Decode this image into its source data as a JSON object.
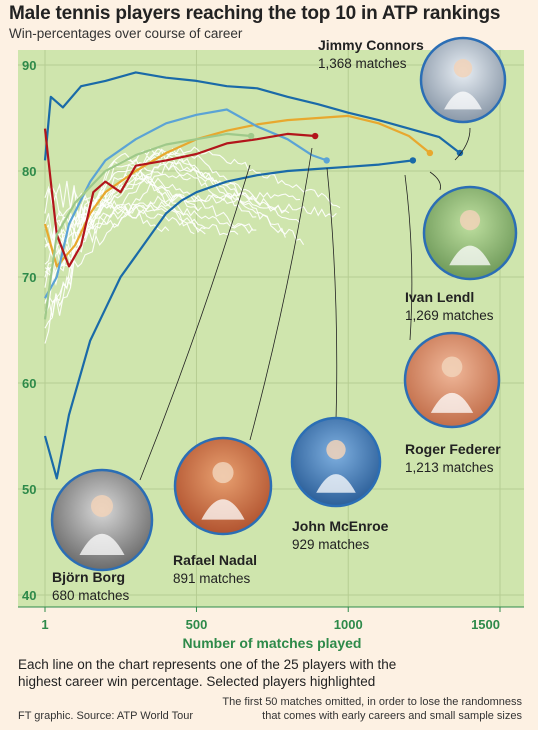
{
  "header": {
    "title": "Male tennis players reaching the top 10 in ATP rankings",
    "subtitle": "Win-percentages over course of career"
  },
  "footer": {
    "caption": "Each line on the chart represents one of the 25 players with the highest career win percentage. Selected players highlighted",
    "source": "FT graphic.   Source: ATP World Tour",
    "note": "The first 50 matches omitted, in order to lose the randomness that comes with early careers and small sample sizes"
  },
  "colors": {
    "plot_bg": "#cfe5ad",
    "grid": "#b6cd92",
    "axis_green": "#2e8a4a",
    "background_lines": "#ffffff",
    "photo_border": "#2b6eb5"
  },
  "chart_data": {
    "type": "line",
    "xlabel": "Number of matches played",
    "ylabel": "",
    "xlim": [
      1,
      1500
    ],
    "ylim": [
      40,
      90
    ],
    "xticks": [
      {
        "value": 1,
        "label": "1"
      },
      {
        "value": 500,
        "label": "500"
      },
      {
        "value": 1000,
        "label": "1000"
      },
      {
        "value": 1500,
        "label": "1500"
      }
    ],
    "yticks": [
      {
        "value": 40,
        "label": "40"
      },
      {
        "value": 50,
        "label": "50"
      },
      {
        "value": 60,
        "label": "60"
      },
      {
        "value": 70,
        "label": "70"
      },
      {
        "value": 80,
        "label": "80"
      },
      {
        "value": 90,
        "label": "90"
      }
    ],
    "grid": true,
    "series": [
      {
        "name": "Jimmy Connors",
        "subtitle": "1,368 matches",
        "color": "#1a6aa8",
        "points": [
          [
            1,
            81
          ],
          [
            20,
            87
          ],
          [
            60,
            86
          ],
          [
            120,
            88
          ],
          [
            200,
            88.5
          ],
          [
            300,
            89.3
          ],
          [
            400,
            88.8
          ],
          [
            500,
            88.5
          ],
          [
            600,
            88
          ],
          [
            700,
            87.8
          ],
          [
            800,
            87
          ],
          [
            900,
            86.3
          ],
          [
            1000,
            85.5
          ],
          [
            1100,
            84.8
          ],
          [
            1200,
            84
          ],
          [
            1300,
            83.2
          ],
          [
            1368,
            81.7
          ]
        ]
      },
      {
        "name": "Ivan Lendl",
        "subtitle": "1,269 matches",
        "color": "#e8a82e",
        "points": [
          [
            1,
            75
          ],
          [
            40,
            71
          ],
          [
            100,
            73
          ],
          [
            150,
            76
          ],
          [
            200,
            78
          ],
          [
            300,
            80
          ],
          [
            400,
            81.7
          ],
          [
            500,
            83
          ],
          [
            600,
            83.8
          ],
          [
            700,
            84.4
          ],
          [
            800,
            84.8
          ],
          [
            900,
            85
          ],
          [
            1000,
            85.2
          ],
          [
            1100,
            84.5
          ],
          [
            1200,
            83.3
          ],
          [
            1269,
            81.7
          ]
        ]
      },
      {
        "name": "Roger Federer",
        "subtitle": "1,213 matches",
        "color": "#1a6aa8",
        "points": [
          [
            1,
            55
          ],
          [
            40,
            51
          ],
          [
            80,
            57
          ],
          [
            120,
            61
          ],
          [
            150,
            64
          ],
          [
            200,
            67
          ],
          [
            250,
            70
          ],
          [
            300,
            72
          ],
          [
            350,
            74
          ],
          [
            400,
            76
          ],
          [
            450,
            77.2
          ],
          [
            500,
            78
          ],
          [
            600,
            79
          ],
          [
            700,
            79.6
          ],
          [
            800,
            80
          ],
          [
            900,
            80.2
          ],
          [
            1000,
            80.4
          ],
          [
            1100,
            80.6
          ],
          [
            1213,
            81
          ]
        ]
      },
      {
        "name": "John McEnroe",
        "subtitle": "929 matches",
        "color": "#5ba3d5",
        "points": [
          [
            1,
            68
          ],
          [
            40,
            70
          ],
          [
            80,
            75
          ],
          [
            150,
            79
          ],
          [
            200,
            81
          ],
          [
            300,
            83
          ],
          [
            400,
            84.5
          ],
          [
            500,
            85.3
          ],
          [
            600,
            85.8
          ],
          [
            700,
            84.2
          ],
          [
            800,
            83
          ],
          [
            880,
            81.5
          ],
          [
            929,
            81
          ]
        ]
      },
      {
        "name": "Rafael Nadal",
        "subtitle": "891 matches",
        "color": "#b2151b",
        "points": [
          [
            1,
            84
          ],
          [
            20,
            79
          ],
          [
            40,
            74
          ],
          [
            80,
            71
          ],
          [
            120,
            73
          ],
          [
            160,
            78
          ],
          [
            200,
            79
          ],
          [
            250,
            78
          ],
          [
            300,
            80.5
          ],
          [
            400,
            81
          ],
          [
            500,
            81.6
          ],
          [
            600,
            82.6
          ],
          [
            700,
            83
          ],
          [
            800,
            83.5
          ],
          [
            891,
            83.3
          ]
        ]
      },
      {
        "name": "Björn Borg",
        "subtitle": "680 matches",
        "color": "#9fc98a",
        "points": [
          [
            1,
            66
          ],
          [
            40,
            74
          ],
          [
            100,
            77
          ],
          [
            200,
            80
          ],
          [
            300,
            81.5
          ],
          [
            400,
            82.5
          ],
          [
            500,
            83
          ],
          [
            600,
            83.5
          ],
          [
            680,
            83.3
          ]
        ]
      }
    ]
  }
}
